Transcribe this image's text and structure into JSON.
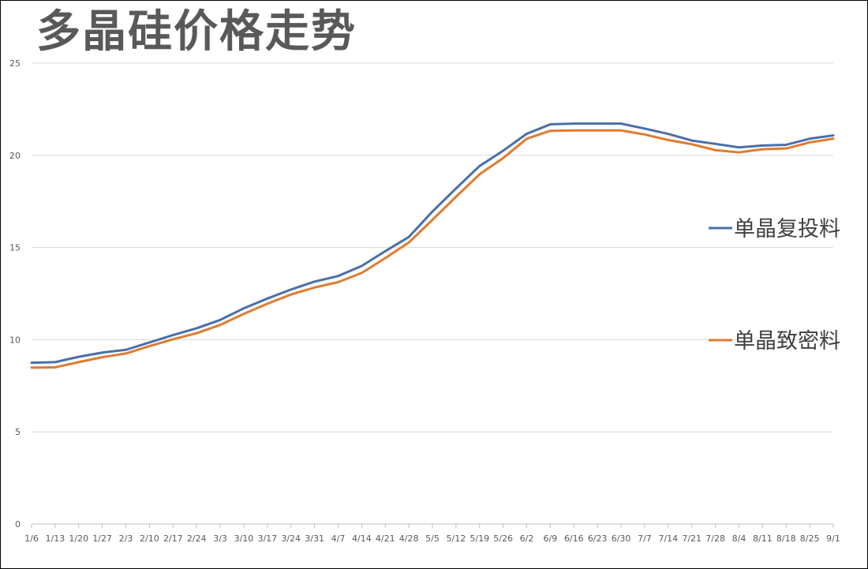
{
  "chart_data": {
    "type": "line",
    "title": "多晶硅价格走势",
    "xlabel": "",
    "ylabel": "",
    "ylim": [
      0,
      25
    ],
    "yticks": [
      0,
      5,
      10,
      15,
      20,
      25
    ],
    "grid": true,
    "legend_position": "right",
    "x": [
      "1/6",
      "1/13",
      "1/20",
      "1/27",
      "2/3",
      "2/10",
      "2/17",
      "2/24",
      "3/3",
      "3/10",
      "3/17",
      "3/24",
      "3/31",
      "4/7",
      "4/14",
      "4/21",
      "4/28",
      "5/5",
      "5/12",
      "5/19",
      "5/26",
      "6/2",
      "6/9",
      "6/16",
      "6/23",
      "6/30",
      "7/7",
      "7/14",
      "7/21",
      "7/28",
      "8/4",
      "8/11",
      "8/18",
      "8/25",
      "9/1"
    ],
    "series": [
      {
        "name": "单晶复投料",
        "color": "#4a6fa8",
        "values": [
          8.75,
          8.78,
          9.07,
          9.3,
          9.45,
          9.85,
          10.25,
          10.62,
          11.07,
          11.7,
          12.23,
          12.72,
          13.15,
          13.45,
          14.0,
          14.8,
          15.57,
          16.95,
          18.2,
          19.42,
          20.25,
          21.17,
          21.68,
          21.72,
          21.72,
          21.72,
          21.45,
          21.16,
          20.8,
          20.62,
          20.43,
          20.53,
          20.57,
          20.9,
          21.08
        ]
      },
      {
        "name": "单晶致密料",
        "color": "#e07b30",
        "values": [
          8.48,
          8.5,
          8.78,
          9.05,
          9.25,
          9.65,
          10.02,
          10.35,
          10.8,
          11.4,
          11.95,
          12.45,
          12.83,
          13.12,
          13.62,
          14.42,
          15.27,
          16.5,
          17.75,
          18.97,
          19.85,
          20.9,
          21.33,
          21.35,
          21.35,
          21.35,
          21.13,
          20.83,
          20.6,
          20.28,
          20.16,
          20.33,
          20.37,
          20.7,
          20.9
        ]
      }
    ]
  }
}
